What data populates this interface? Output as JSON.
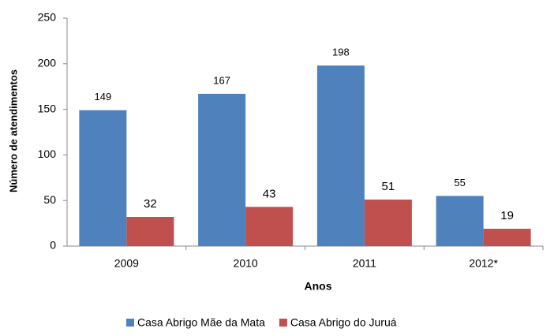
{
  "chart_data": {
    "type": "bar",
    "x_label": "Anos",
    "y_label": "Número de atendimentos",
    "categories": [
      "2009",
      "2010",
      "2011",
      "2012*"
    ],
    "series": [
      {
        "name": "Casa Abrigo Mãe da Mata",
        "color": "#4f81bd",
        "values": [
          149,
          167,
          198,
          55
        ]
      },
      {
        "name": "Casa Abrigo do Juruá",
        "color": "#c0504d",
        "values": [
          32,
          43,
          51,
          19
        ]
      }
    ],
    "ylim": [
      0,
      250
    ],
    "yticks": [
      0,
      50,
      100,
      150,
      200,
      250
    ],
    "legend": "bottom"
  }
}
